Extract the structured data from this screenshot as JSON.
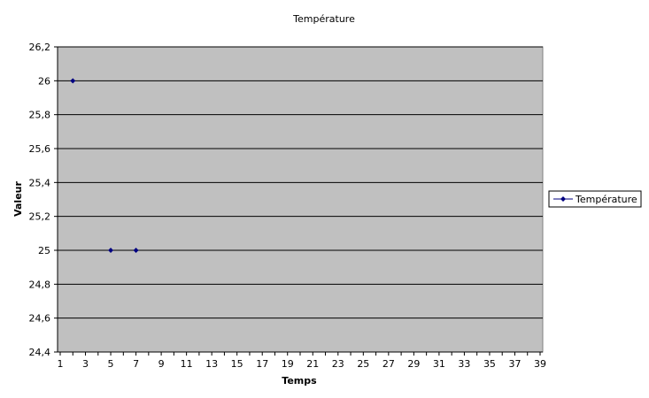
{
  "chart_data": {
    "type": "scatter",
    "title": "Température",
    "xlabel": "Temps",
    "ylabel": "Valeur",
    "xlim": [
      1,
      39
    ],
    "ylim": [
      24.4,
      26.2
    ],
    "x_ticks": [
      "1",
      "3",
      "5",
      "7",
      "9",
      "11",
      "13",
      "15",
      "17",
      "19",
      "21",
      "23",
      "25",
      "27",
      "29",
      "31",
      "33",
      "35",
      "37",
      "39"
    ],
    "y_ticks": [
      "24,4",
      "24,6",
      "24,8",
      "25",
      "25,2",
      "25,4",
      "25,6",
      "25,8",
      "26",
      "26,2"
    ],
    "grid": "horizontal",
    "legend": "right",
    "series": [
      {
        "name": "Température",
        "color": "#000080",
        "marker": "diamond",
        "points": [
          {
            "x": 2,
            "y": 26
          },
          {
            "x": 5,
            "y": 25
          },
          {
            "x": 7,
            "y": 25
          }
        ]
      }
    ],
    "plot_background": "#c0c0c0"
  }
}
